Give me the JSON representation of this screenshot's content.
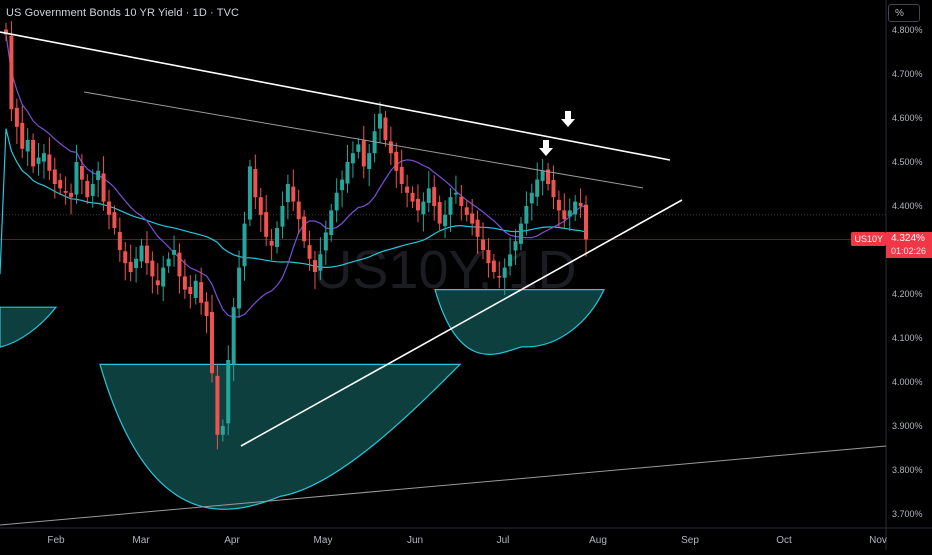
{
  "header": {
    "title": "US Government Bonds 10 YR Yield · 1D · TVC",
    "unit": "%"
  },
  "watermark": "US10Y, 1D",
  "price_label": {
    "symbol": "US10Y",
    "last": "4.324%",
    "countdown": "01:02:26",
    "color": "#f23645"
  },
  "colors": {
    "up": "#26a69a",
    "down": "#ef5350",
    "ma_fast": "#7b4fd6",
    "ma_slow": "#26c6da",
    "trendline": "#ffffff",
    "cup_fill": "#0f4a4a",
    "cup_stroke": "#26c6da"
  },
  "chart_data": {
    "type": "candlestick",
    "y_axis_labels": [
      "4.800%",
      "4.700%",
      "4.600%",
      "4.500%",
      "4.400%",
      "4.200%",
      "4.100%",
      "4.000%",
      "3.900%",
      "3.800%",
      "3.700%"
    ],
    "x_axis_labels": [
      "Feb",
      "Mar",
      "Apr",
      "May",
      "Jun",
      "Jul",
      "Aug",
      "Sep",
      "Oct",
      "Nov"
    ],
    "ylim": [
      3.66,
      4.83
    ],
    "last_price": 4.324,
    "candles_close": [
      4.79,
      4.62,
      4.58,
      4.53,
      4.55,
      4.49,
      4.51,
      4.52,
      4.48,
      4.45,
      4.44,
      4.43,
      4.42,
      4.5,
      4.46,
      4.42,
      4.45,
      4.48,
      4.41,
      4.38,
      4.35,
      4.3,
      4.27,
      4.25,
      4.28,
      4.31,
      4.27,
      4.24,
      4.22,
      4.26,
      4.28,
      4.3,
      4.24,
      4.21,
      4.2,
      4.23,
      4.18,
      4.15,
      4.02,
      3.88,
      3.9,
      4.05,
      4.17,
      4.26,
      4.36,
      4.49,
      4.42,
      4.38,
      4.33,
      4.31,
      4.35,
      4.4,
      4.45,
      4.41,
      4.37,
      4.32,
      4.28,
      4.25,
      4.29,
      4.34,
      4.39,
      4.43,
      4.46,
      4.5,
      4.52,
      4.54,
      4.49,
      4.52,
      4.57,
      4.61,
      4.55,
      4.52,
      4.48,
      4.45,
      4.43,
      4.41,
      4.39,
      4.41,
      4.44,
      4.4,
      4.36,
      4.38,
      4.42,
      4.43,
      4.4,
      4.38,
      4.36,
      4.33,
      4.3,
      4.27,
      4.25,
      4.24,
      4.26,
      4.29,
      4.32,
      4.36,
      4.4,
      4.43,
      4.46,
      4.48,
      4.45,
      4.42,
      4.39,
      4.37,
      4.39,
      4.41,
      4.4,
      4.324
    ],
    "annotations": [
      {
        "type": "trendline",
        "from": [
          "Jan",
          4.79
        ],
        "to": [
          "Aug",
          4.5
        ],
        "color": "#ffffff"
      },
      {
        "type": "trendline",
        "from": [
          "Feb",
          4.66
        ],
        "to": [
          "Aug",
          4.43
        ],
        "color": "#a0a0a0"
      },
      {
        "type": "trendline",
        "from": [
          "Apr",
          3.86
        ],
        "to": [
          "Aug",
          4.41
        ],
        "color": "#ffffff"
      },
      {
        "type": "trendline",
        "from": [
          "Jan",
          3.66
        ],
        "to": [
          "Nov",
          3.85
        ],
        "color": "#a0a0a0"
      },
      {
        "type": "arc",
        "label": "cup",
        "range": [
          "Mar",
          "May"
        ],
        "low": 3.74
      },
      {
        "type": "arc",
        "label": "cup",
        "range": [
          "Jun",
          "Jul"
        ],
        "low": 4.08
      },
      {
        "type": "arrow",
        "direction": "down",
        "at": "Jul"
      },
      {
        "type": "arrow",
        "direction": "down",
        "at": "Jul"
      }
    ]
  }
}
